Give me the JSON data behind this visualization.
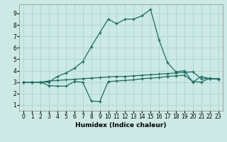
{
  "xlabel": "Humidex (Indice chaleur)",
  "xlim": [
    -0.5,
    23.5
  ],
  "ylim": [
    0.5,
    9.8
  ],
  "xtick_labels": [
    "0",
    "1",
    "2",
    "3",
    "4",
    "5",
    "6",
    "7",
    "8",
    "9",
    "10",
    "11",
    "12",
    "13",
    "14",
    "15",
    "16",
    "17",
    "18",
    "19",
    "20",
    "21",
    "22",
    "23"
  ],
  "yticks": [
    1,
    2,
    3,
    4,
    5,
    6,
    7,
    8,
    9
  ],
  "bg_color": "#cce9e5",
  "grid_color": "#aad4cf",
  "line_color": "#1a6e63",
  "line1_x": [
    0,
    1,
    2,
    3,
    4,
    5,
    6,
    7,
    8,
    9,
    10,
    11,
    12,
    13,
    14,
    15,
    16,
    17,
    18,
    19,
    20,
    21,
    22,
    23
  ],
  "line1_y": [
    3.0,
    3.0,
    3.0,
    3.1,
    3.15,
    3.2,
    3.25,
    3.3,
    3.35,
    3.4,
    3.45,
    3.5,
    3.5,
    3.55,
    3.6,
    3.65,
    3.7,
    3.75,
    3.8,
    3.85,
    3.9,
    3.3,
    3.3,
    3.3
  ],
  "line2_x": [
    0,
    1,
    2,
    3,
    4,
    5,
    6,
    7,
    8,
    9,
    10,
    11,
    12,
    13,
    14,
    15,
    16,
    17,
    18,
    19,
    20,
    21,
    22,
    23
  ],
  "line2_y": [
    3.0,
    3.0,
    3.0,
    2.7,
    2.65,
    2.65,
    3.05,
    3.0,
    1.35,
    1.3,
    3.05,
    3.1,
    3.15,
    3.2,
    3.3,
    3.35,
    3.4,
    3.5,
    3.55,
    3.6,
    3.05,
    3.0,
    3.35,
    3.25
  ],
  "line3_x": [
    0,
    1,
    2,
    3,
    4,
    5,
    6,
    7,
    8,
    9,
    10,
    11,
    12,
    13,
    14,
    15,
    16,
    17,
    18,
    19,
    20,
    21,
    22,
    23
  ],
  "line3_y": [
    3.0,
    3.0,
    3.0,
    3.0,
    3.5,
    3.8,
    4.2,
    4.8,
    6.1,
    7.3,
    8.5,
    8.1,
    8.5,
    8.5,
    8.8,
    9.35,
    6.7,
    4.7,
    3.9,
    4.0,
    3.0,
    3.5,
    3.3,
    3.3
  ]
}
